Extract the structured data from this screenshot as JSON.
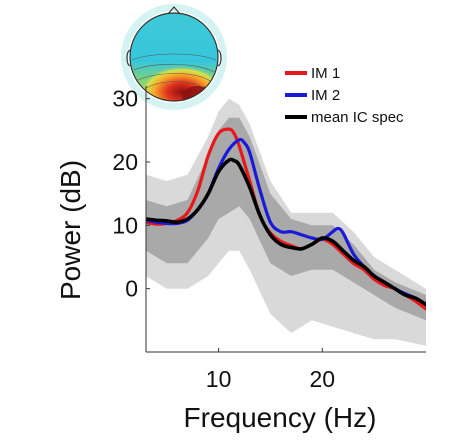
{
  "chart_data": {
    "type": "line",
    "xlabel": "Frequency (Hz)",
    "ylabel": "Power (dB)",
    "xlim": [
      3,
      30
    ],
    "ylim": [
      -10,
      32
    ],
    "xticks": [
      10,
      20
    ],
    "yticks": [
      0,
      10,
      20,
      30
    ],
    "legend_position": "top-right",
    "colors": {
      "band_outer": "#d9d9d9",
      "band_inner": "#a9a9a9"
    },
    "bands": {
      "x": [
        3,
        5,
        7,
        9,
        10,
        11,
        12,
        13,
        15,
        17,
        19,
        21,
        23,
        25,
        27,
        30
      ],
      "outer_upper": [
        18,
        17,
        18,
        24,
        28,
        30,
        29,
        26,
        17,
        12,
        12,
        12,
        9,
        5,
        3,
        0
      ],
      "outer_lower": [
        2,
        0,
        0,
        2,
        4,
        6,
        6,
        3,
        -4,
        -7,
        -5,
        -6,
        -7,
        -8,
        -8,
        -9
      ],
      "inner_upper": [
        14,
        13,
        14,
        21,
        25,
        27,
        27,
        24,
        15,
        11,
        10,
        10,
        7,
        3,
        1,
        -1
      ],
      "inner_lower": [
        6,
        4,
        4,
        8,
        11,
        12,
        13,
        11,
        4,
        2,
        3,
        3,
        1,
        -1,
        -3,
        -5
      ]
    },
    "series": [
      {
        "name": "IM 1",
        "color": "#e8171b",
        "x": [
          3,
          4,
          5,
          6,
          7,
          8,
          9,
          10,
          11,
          11.5,
          12,
          13,
          14,
          15,
          16,
          17,
          18,
          19,
          20,
          21,
          22,
          23,
          24,
          25,
          26,
          27,
          28,
          29,
          30
        ],
        "y": [
          10.5,
          10.2,
          10.3,
          10.8,
          12.0,
          15.5,
          21.0,
          24.5,
          25.2,
          24.5,
          22.5,
          17.0,
          11.5,
          8.8,
          7.5,
          6.8,
          6.3,
          7.0,
          7.8,
          7.0,
          5.5,
          4.0,
          3.0,
          1.5,
          0.5,
          0.0,
          -1.0,
          -2.0,
          -3.2
        ]
      },
      {
        "name": "IM 2",
        "color": "#1a1adb",
        "x": [
          3,
          4,
          5,
          6,
          7,
          8,
          9,
          10,
          11,
          12,
          12.5,
          13,
          14,
          15,
          16,
          17,
          18,
          19,
          20,
          21,
          21.5,
          22,
          23,
          24,
          25,
          26,
          27,
          28,
          29,
          30
        ],
        "y": [
          10.8,
          10.5,
          10.3,
          10.3,
          10.8,
          12.5,
          15.0,
          19.0,
          22.0,
          23.5,
          23.0,
          21.5,
          15.5,
          10.5,
          9.0,
          9.0,
          8.5,
          8.0,
          7.8,
          9.0,
          9.5,
          8.8,
          5.5,
          3.5,
          2.0,
          1.0,
          0.0,
          -0.8,
          -1.5,
          -2.5
        ]
      },
      {
        "name": "mean IC spec",
        "color": "#000000",
        "x": [
          3,
          4,
          5,
          6,
          7,
          8,
          9,
          10,
          11,
          11.5,
          12,
          13,
          14,
          15,
          16,
          17,
          18,
          19,
          20,
          21,
          22,
          23,
          24,
          25,
          26,
          27,
          28,
          29,
          30
        ],
        "y": [
          11.0,
          10.8,
          10.7,
          10.5,
          11.0,
          12.5,
          15.0,
          18.5,
          20.3,
          20.2,
          19.5,
          16.0,
          11.5,
          8.5,
          7.0,
          6.5,
          6.3,
          7.0,
          8.0,
          7.5,
          6.0,
          4.5,
          3.5,
          2.0,
          1.0,
          0.0,
          -1.0,
          -1.5,
          -2.5
        ]
      }
    ]
  },
  "topomap": {
    "colors": [
      "#2fc6d8",
      "#6fd27a",
      "#d9e24a",
      "#f7a427",
      "#e0311f",
      "#8c1010"
    ]
  }
}
